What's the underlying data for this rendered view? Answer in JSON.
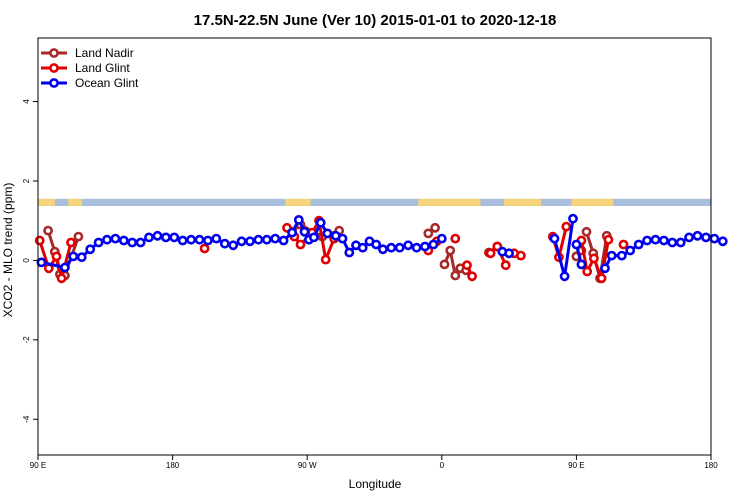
{
  "chart_data": {
    "type": "line",
    "title": "17.5N-22.5N June (Ver 10)   2015-01-01 to 2020-12-18",
    "xlabel": "Longitude",
    "ylabel": "XCO2 - MLO trend (ppm)",
    "xlim": [
      0,
      20
    ],
    "ylim": [
      -4.9,
      5.6
    ],
    "x_ticks": [
      {
        "pos": 0,
        "label": "90 E"
      },
      {
        "pos": 4,
        "label": "180"
      },
      {
        "pos": 8,
        "label": "90 W"
      },
      {
        "pos": 12,
        "label": "0"
      },
      {
        "pos": 16,
        "label": "90 E"
      },
      {
        "pos": 20,
        "label": "180"
      }
    ],
    "y_ticks": [
      -4,
      -2,
      0,
      2,
      4
    ],
    "legend_position": "top-left",
    "colors": {
      "land": "#f7d37b",
      "ocean": "#a9bedc",
      "axis": "#000000"
    },
    "land_ocean_band": {
      "y_range": [
        1.37,
        1.55
      ],
      "land_spans": [
        [
          0.0,
          0.5
        ],
        [
          0.9,
          1.3
        ],
        [
          7.35,
          8.1
        ],
        [
          11.3,
          13.15
        ],
        [
          13.85,
          14.95
        ],
        [
          15.85,
          17.1
        ]
      ]
    },
    "series": [
      {
        "name": "Land Nadir",
        "color": "#a52a2a",
        "segments": [
          [
            [
              0.3,
              0.75
            ],
            [
              0.5,
              0.22
            ],
            [
              0.65,
              -0.35
            ],
            [
              0.8,
              -0.38
            ],
            [
              1.2,
              0.6
            ]
          ],
          [
            [
              7.55,
              0.72
            ],
            [
              7.8,
              0.9
            ],
            [
              8.45,
              0.6
            ],
            [
              8.95,
              0.75
            ]
          ],
          [
            [
              11.6,
              0.68
            ],
            [
              11.8,
              0.82
            ]
          ],
          [
            [
              12.08,
              -0.1
            ],
            [
              12.25,
              0.25
            ],
            [
              12.4,
              -0.38
            ],
            [
              12.55,
              -0.2
            ],
            [
              12.72,
              -0.25
            ]
          ],
          [
            [
              13.4,
              0.2
            ],
            [
              13.65,
              0.35
            ]
          ],
          [
            [
              16.0,
              0.1
            ],
            [
              16.15,
              0.25
            ]
          ],
          [
            [
              16.3,
              0.72
            ],
            [
              16.5,
              0.18
            ],
            [
              16.7,
              -0.45
            ],
            [
              16.9,
              0.62
            ]
          ]
        ]
      },
      {
        "name": "Land Glint",
        "color": "#e00000",
        "segments": [
          [
            [
              0.05,
              0.5
            ],
            [
              0.32,
              -0.2
            ],
            [
              0.55,
              0.1
            ],
            [
              0.7,
              -0.45
            ],
            [
              0.98,
              0.45
            ]
          ],
          [
            [
              4.95,
              0.3
            ]
          ],
          [
            [
              7.4,
              0.82
            ],
            [
              7.62,
              0.6
            ],
            [
              7.8,
              0.4
            ],
            [
              8.15,
              0.7
            ],
            [
              8.35,
              1.0
            ],
            [
              8.55,
              0.02
            ],
            [
              8.8,
              0.55
            ]
          ],
          [
            [
              11.6,
              0.25
            ],
            [
              11.85,
              0.48
            ]
          ],
          [
            [
              12.4,
              0.55
            ]
          ],
          [
            [
              12.75,
              -0.12
            ],
            [
              12.9,
              -0.4
            ]
          ],
          [
            [
              13.45,
              0.18
            ],
            [
              13.65,
              0.35
            ],
            [
              13.9,
              -0.12
            ]
          ],
          [
            [
              14.15,
              0.18
            ],
            [
              14.35,
              0.12
            ]
          ],
          [
            [
              15.3,
              0.6
            ],
            [
              15.48,
              0.08
            ],
            [
              15.7,
              0.85
            ]
          ],
          [
            [
              16.15,
              0.5
            ],
            [
              16.32,
              -0.28
            ],
            [
              16.52,
              0.05
            ],
            [
              16.75,
              -0.45
            ],
            [
              16.95,
              0.52
            ]
          ],
          [
            [
              17.4,
              0.4
            ]
          ]
        ]
      },
      {
        "name": "Ocean Glint",
        "color": "#0000ee",
        "segments": [
          [
            [
              0.1,
              -0.05
            ],
            [
              0.8,
              -0.18
            ],
            [
              1.05,
              0.1
            ],
            [
              1.3,
              0.08
            ],
            [
              1.55,
              0.28
            ],
            [
              1.8,
              0.45
            ],
            [
              2.05,
              0.52
            ],
            [
              2.3,
              0.55
            ],
            [
              2.55,
              0.5
            ],
            [
              2.8,
              0.45
            ],
            [
              3.05,
              0.45
            ],
            [
              3.3,
              0.58
            ],
            [
              3.55,
              0.62
            ],
            [
              3.8,
              0.58
            ],
            [
              4.05,
              0.58
            ],
            [
              4.3,
              0.5
            ],
            [
              4.55,
              0.52
            ],
            [
              4.8,
              0.52
            ],
            [
              5.05,
              0.5
            ],
            [
              5.3,
              0.55
            ],
            [
              5.55,
              0.42
            ],
            [
              5.8,
              0.38
            ],
            [
              6.05,
              0.48
            ],
            [
              6.3,
              0.48
            ],
            [
              6.55,
              0.52
            ],
            [
              6.8,
              0.52
            ],
            [
              7.05,
              0.55
            ],
            [
              7.3,
              0.5
            ],
            [
              7.55,
              0.7
            ],
            [
              7.75,
              1.02
            ],
            [
              7.92,
              0.72
            ],
            [
              8.05,
              0.52
            ],
            [
              8.2,
              0.58
            ],
            [
              8.4,
              0.95
            ],
            [
              8.6,
              0.68
            ],
            [
              8.85,
              0.62
            ],
            [
              9.05,
              0.55
            ],
            [
              9.25,
              0.2
            ],
            [
              9.45,
              0.38
            ],
            [
              9.65,
              0.32
            ],
            [
              9.85,
              0.48
            ],
            [
              10.05,
              0.4
            ],
            [
              10.25,
              0.28
            ],
            [
              10.5,
              0.32
            ],
            [
              10.75,
              0.32
            ],
            [
              11.0,
              0.38
            ],
            [
              11.25,
              0.32
            ],
            [
              11.5,
              0.35
            ],
            [
              11.75,
              0.4
            ],
            [
              12.0,
              0.55
            ]
          ],
          [
            [
              13.8,
              0.22
            ],
            [
              14.0,
              0.18
            ]
          ],
          [
            [
              15.35,
              0.55
            ],
            [
              15.65,
              -0.4
            ],
            [
              15.9,
              1.05
            ]
          ],
          [
            [
              16.0,
              0.4
            ],
            [
              16.15,
              -0.1
            ]
          ],
          [
            [
              16.85,
              -0.2
            ],
            [
              17.05,
              0.12
            ],
            [
              17.35,
              0.12
            ],
            [
              17.6,
              0.25
            ],
            [
              17.85,
              0.4
            ],
            [
              18.1,
              0.5
            ],
            [
              18.35,
              0.52
            ],
            [
              18.6,
              0.5
            ],
            [
              18.85,
              0.45
            ],
            [
              19.1,
              0.45
            ],
            [
              19.35,
              0.58
            ],
            [
              19.6,
              0.62
            ],
            [
              19.85,
              0.58
            ],
            [
              20.1,
              0.55
            ],
            [
              20.35,
              0.48
            ]
          ]
        ]
      }
    ]
  }
}
